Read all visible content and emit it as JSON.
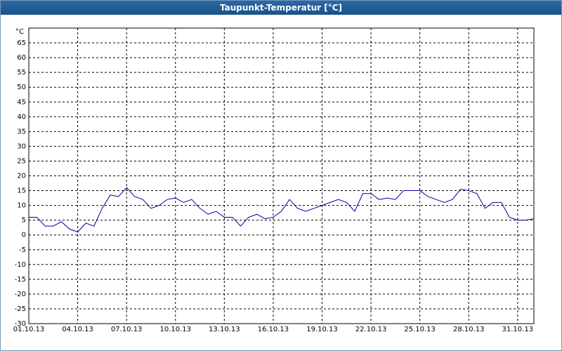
{
  "chart_data": {
    "type": "line",
    "title": "Taupunkt-Temperatur [°C]",
    "y_unit": "°C",
    "x": [
      0,
      0.5,
      1,
      1.5,
      2,
      2.5,
      3,
      3.5,
      4,
      4.5,
      5,
      5.5,
      6,
      6.5,
      7,
      7.5,
      8,
      8.5,
      9,
      9.5,
      10,
      10.5,
      11,
      11.5,
      12,
      12.5,
      13,
      13.5,
      14,
      14.5,
      15,
      15.5,
      16,
      16.5,
      17,
      17.5,
      18,
      18.5,
      19,
      19.5,
      20,
      20.5,
      21,
      21.5,
      22,
      22.5,
      23,
      23.5,
      24,
      24.5,
      25,
      25.5,
      26,
      26.5,
      27,
      27.5,
      28,
      28.5,
      29,
      29.5,
      30,
      30.5,
      31
    ],
    "series": [
      {
        "color": "#0000a0",
        "values": [
          6,
          6,
          3,
          3,
          4.5,
          2,
          1,
          4,
          3,
          9,
          13.5,
          13,
          16,
          13,
          12,
          9,
          10,
          12,
          12.5,
          11,
          12,
          9,
          7,
          8,
          6,
          6,
          3,
          6,
          7,
          5.5,
          6,
          8,
          12,
          9,
          8,
          9,
          10,
          11,
          12,
          11,
          8,
          14,
          14,
          12,
          12.5,
          12,
          15,
          15,
          15,
          13,
          12,
          11,
          12,
          15.5,
          15,
          14,
          9,
          11,
          11,
          6,
          5,
          5,
          5.5
        ]
      }
    ],
    "xlim": [
      0,
      31
    ],
    "xticks": [
      {
        "value": 0,
        "label": "01.10.13"
      },
      {
        "value": 3,
        "label": "04.10.13"
      },
      {
        "value": 6,
        "label": "07.10.13"
      },
      {
        "value": 9,
        "label": "10.10.13"
      },
      {
        "value": 12,
        "label": "13.10.13"
      },
      {
        "value": 15,
        "label": "16.10.13"
      },
      {
        "value": 18,
        "label": "19.10.13"
      },
      {
        "value": 21,
        "label": "22.10.13"
      },
      {
        "value": 24,
        "label": "25.10.13"
      },
      {
        "value": 27,
        "label": "28.10.13"
      },
      {
        "value": 30,
        "label": "31.10.13"
      }
    ],
    "ylim": [
      -30,
      70
    ],
    "yticks": [
      -30,
      -25,
      -20,
      -15,
      -10,
      -5,
      0,
      5,
      10,
      15,
      20,
      25,
      30,
      35,
      40,
      45,
      50,
      55,
      60,
      65
    ],
    "grid": true
  }
}
